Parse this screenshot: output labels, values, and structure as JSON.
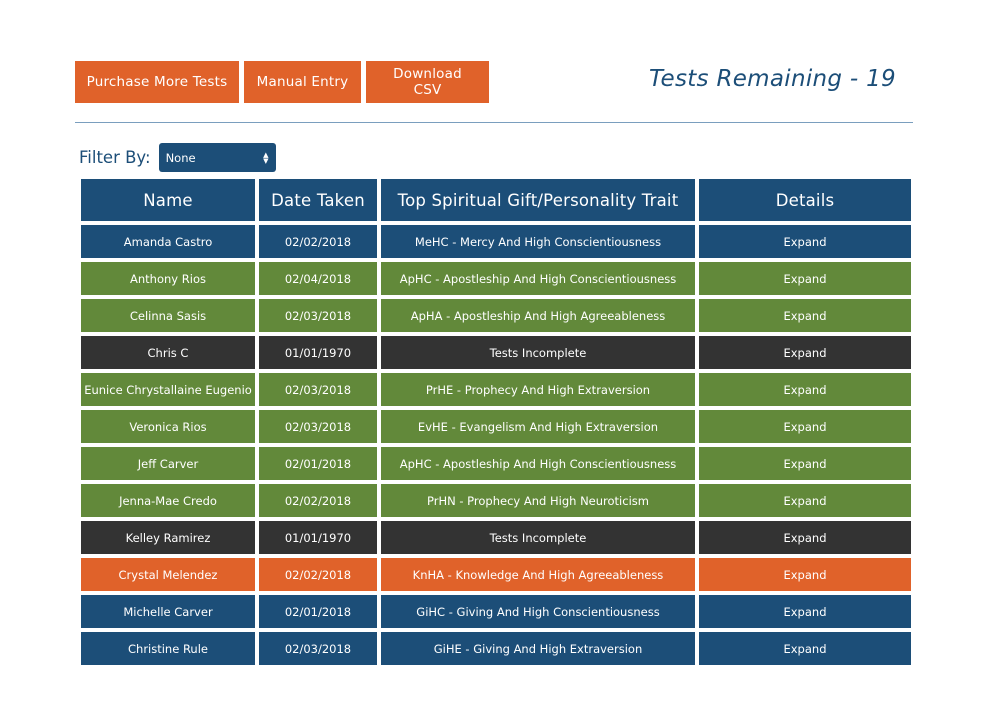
{
  "toolbar": {
    "purchase_label": "Purchase More Tests",
    "manual_label": "Manual Entry",
    "csv_label": "Download CSV"
  },
  "tests_remaining": "Tests Remaining - 19",
  "filter": {
    "label": "Filter By:",
    "selected": "None"
  },
  "table": {
    "headers": [
      "Name",
      "Date Taken",
      "Top Spiritual Gift/Personality Trait",
      "Details"
    ],
    "rows": [
      {
        "name": "Amanda Castro",
        "date": "02/02/2018",
        "trait": "MeHC - Mercy And High Conscientiousness",
        "details": "Expand",
        "color": "#1c4e78"
      },
      {
        "name": "Anthony Rios",
        "date": "02/04/2018",
        "trait": "ApHC - Apostleship And High Conscientiousness",
        "details": "Expand",
        "color": "#62893a"
      },
      {
        "name": "Celinna Sasis",
        "date": "02/03/2018",
        "trait": "ApHA - Apostleship And High Agreeableness",
        "details": "Expand",
        "color": "#62893a"
      },
      {
        "name": "Chris C",
        "date": "01/01/1970",
        "trait": "Tests Incomplete",
        "details": "Expand",
        "color": "#333333"
      },
      {
        "name": "Eunice Chrystallaine Eugenio",
        "date": "02/03/2018",
        "trait": "PrHE - Prophecy And High Extraversion",
        "details": "Expand",
        "color": "#62893a"
      },
      {
        "name": "Veronica Rios",
        "date": "02/03/2018",
        "trait": "EvHE - Evangelism And High Extraversion",
        "details": "Expand",
        "color": "#62893a"
      },
      {
        "name": "Jeff Carver",
        "date": "02/01/2018",
        "trait": "ApHC - Apostleship And High Conscientiousness",
        "details": "Expand",
        "color": "#62893a"
      },
      {
        "name": "Jenna-Mae Credo",
        "date": "02/02/2018",
        "trait": "PrHN - Prophecy And High Neuroticism",
        "details": "Expand",
        "color": "#62893a"
      },
      {
        "name": "Kelley Ramirez",
        "date": "01/01/1970",
        "trait": "Tests Incomplete",
        "details": "Expand",
        "color": "#333333"
      },
      {
        "name": "Crystal Melendez",
        "date": "02/02/2018",
        "trait": "KnHA - Knowledge And High Agreeableness",
        "details": "Expand",
        "color": "#e0622a"
      },
      {
        "name": "Michelle Carver",
        "date": "02/01/2018",
        "trait": "GiHC - Giving And High Conscientiousness",
        "details": "Expand",
        "color": "#1c4e78"
      },
      {
        "name": "Christine Rule",
        "date": "02/03/2018",
        "trait": "GiHE - Giving And High Extraversion",
        "details": "Expand",
        "color": "#1c4e78"
      }
    ]
  }
}
